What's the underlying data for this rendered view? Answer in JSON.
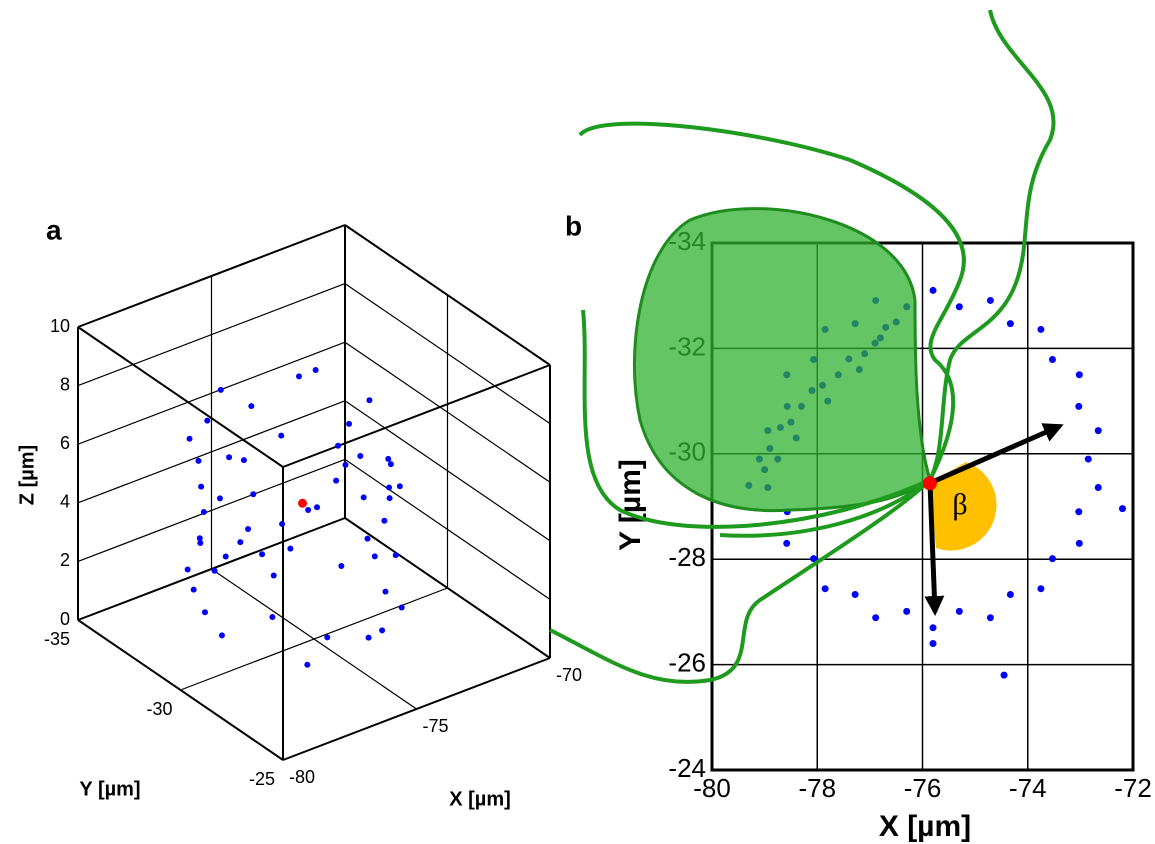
{
  "chart_data": [
    {
      "type": "scatter3d",
      "panel_label": "a",
      "xlabel": "X [µm]",
      "ylabel": "Y [µm]",
      "zlabel": "Z [µm]",
      "xlim": [
        -80,
        -70
      ],
      "xticks": [
        -80,
        -75,
        -70
      ],
      "ylim": [
        -35,
        -25
      ],
      "yticks": [
        -35,
        -30,
        -25
      ],
      "zlim": [
        0,
        10
      ],
      "zticks": [
        0,
        2,
        4,
        6,
        8,
        10
      ],
      "grid": true,
      "series": [
        {
          "color": "#0000ff",
          "x": [
            -72.8,
            -72.98,
            -73.49,
            -74.3,
            -75.29,
            -76.31,
            -77.3,
            -78.11,
            -78.62,
            -78.8,
            -78.62,
            -78.11,
            -77.3,
            -76.31,
            -75.29,
            -74.3,
            -73.49,
            -72.98,
            -72.66,
            -73.02,
            -73.75,
            -74.71,
            -75.8,
            -76.89,
            -77.85,
            -78.58,
            -78.94,
            -78.94,
            -78.58,
            -77.85,
            -76.89,
            -75.8,
            -74.71,
            -73.75,
            -73.02,
            -72.66,
            -73.0,
            -73.17,
            -73.64,
            -74.4,
            -75.32,
            -76.28,
            -77.2,
            -77.96,
            -78.43,
            -78.6,
            -78.43,
            -77.96,
            -77.2,
            -76.28,
            -75.32,
            -74.4,
            -73.64,
            -73.17
          ],
          "y": [
            -29.9,
            -28.88,
            -27.98,
            -27.29,
            -26.96,
            -26.96,
            -27.29,
            -27.98,
            -28.88,
            -29.9,
            -30.92,
            -31.82,
            -32.51,
            -32.84,
            -32.84,
            -32.51,
            -31.82,
            -30.92,
            -29.36,
            -28.3,
            -27.44,
            -26.89,
            -26.7,
            -26.89,
            -27.44,
            -28.3,
            -29.36,
            -30.44,
            -31.5,
            -32.36,
            -32.91,
            -33.1,
            -32.91,
            -32.36,
            -31.5,
            -30.44,
            -29.9,
            -28.95,
            -28.11,
            -27.46,
            -27.16,
            -27.16,
            -27.46,
            -28.11,
            -28.95,
            -29.9,
            -30.85,
            -31.69,
            -32.34,
            -32.64,
            -32.64,
            -32.34,
            -31.69,
            -30.85
          ],
          "z": [
            2.1,
            5.8,
            3.3,
            7.2,
            1.6,
            4.4,
            6.5,
            2.8,
            5.1,
            3.7,
            6.9,
            1.9,
            4.8,
            7.6,
            2.5,
            5.5,
            3.1,
            6.2,
            4.3,
            1.2,
            6.0,
            3.0,
            8.1,
            2.2,
            5.3,
            7.0,
            1.8,
            4.6,
            2.9,
            6.7,
            3.6,
            5.0,
            1.4,
            7.4,
            4.0,
            2.4,
            7.5,
            3.9,
            5.6,
            1.3,
            6.3,
            8.4,
            1.1,
            4.1,
            7.8,
            6.1,
            1.7,
            3.5,
            7.1,
            2.0,
            6.8,
            2.6,
            7.9,
            4.9
          ]
        },
        {
          "color": "#ff0000",
          "x": [
            -75.86
          ],
          "y": [
            -29.44
          ],
          "z": [
            5.2
          ]
        }
      ]
    },
    {
      "type": "scatter",
      "panel_label": "b",
      "xlabel": "X [µm]",
      "ylabel": "Y [µm]",
      "annotation": "β",
      "xlim": [
        -80,
        -72
      ],
      "xticks": [
        -80,
        -78,
        -76,
        -74,
        -72
      ],
      "ylim": [
        -24,
        -34
      ],
      "yticks": [
        -34,
        -32,
        -30,
        -28,
        -26,
        -24
      ],
      "grid": true,
      "series": [
        {
          "color": "#0000ff",
          "x": [
            -72.85,
            -73.03,
            -73.53,
            -74.33,
            -75.3,
            -76.3,
            -77.28,
            -78.07,
            -78.57,
            -78.75,
            -78.57,
            -78.07,
            -77.28,
            -76.3,
            -75.3,
            -74.33,
            -73.53,
            -73.03,
            -72.66,
            -73.02,
            -73.75,
            -74.71,
            -75.8,
            -76.89,
            -77.85,
            -78.58,
            -78.94,
            -78.94,
            -78.58,
            -77.85,
            -76.89,
            -75.8,
            -74.71,
            -73.75,
            -73.02,
            -72.66,
            -79.3,
            -79.1,
            -78.9,
            -78.7,
            -78.5,
            -78.3,
            -78.1,
            -77.9,
            -77.6,
            -77.4,
            -77.1,
            -76.9,
            -76.7,
            -76.5,
            -79.0,
            -78.4,
            -77.8,
            -77.2,
            -76.8,
            -72.2,
            -74.45,
            -75.8
          ],
          "y": [
            -29.9,
            -28.9,
            -28.01,
            -27.33,
            -27.01,
            -27.01,
            -27.33,
            -28.01,
            -28.9,
            -29.9,
            -30.9,
            -31.79,
            -32.47,
            -32.79,
            -32.79,
            -32.47,
            -31.79,
            -30.9,
            -29.36,
            -28.3,
            -27.44,
            -26.89,
            -26.7,
            -26.89,
            -27.44,
            -28.3,
            -29.36,
            -30.44,
            -31.5,
            -32.36,
            -32.91,
            -33.1,
            -32.91,
            -32.36,
            -31.5,
            -30.44,
            -29.4,
            -29.9,
            -30.1,
            -30.5,
            -30.6,
            -30.9,
            -31.2,
            -31.3,
            -31.5,
            -31.8,
            -31.9,
            -32.1,
            -32.4,
            -32.5,
            -29.7,
            -30.3,
            -31.0,
            -31.6,
            -32.2,
            -28.96,
            -25.8,
            -26.4
          ]
        },
        {
          "color": "#ff0000",
          "x": [
            -75.86
          ],
          "y": [
            -29.44
          ]
        }
      ]
    }
  ]
}
